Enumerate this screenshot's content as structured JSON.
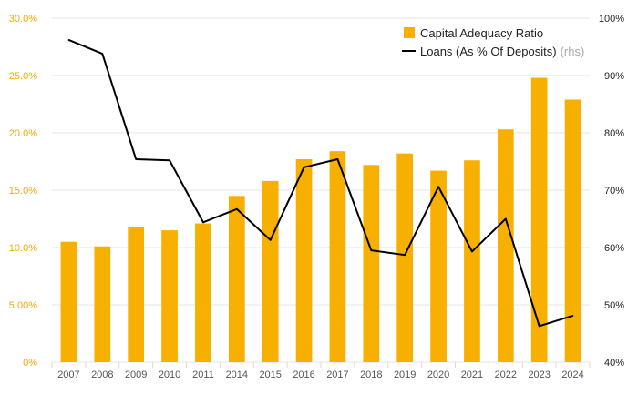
{
  "chart_data": {
    "type": "bar",
    "categories": [
      "2007",
      "2008",
      "2009",
      "2010",
      "2011",
      "2014",
      "2015",
      "2016",
      "2017",
      "2018",
      "2019",
      "2020",
      "2021",
      "2022",
      "2023",
      "2024"
    ],
    "series": [
      {
        "name": "Capital Adequacy Ratio",
        "type": "bar",
        "axis": "left",
        "color": "#f7b000",
        "values": [
          10.5,
          10.1,
          11.8,
          11.5,
          12.1,
          14.5,
          15.8,
          17.7,
          18.4,
          17.2,
          18.2,
          16.7,
          17.6,
          20.3,
          24.8,
          22.9
        ]
      },
      {
        "name": "Loans (As % Of Deposits)",
        "type": "line",
        "axis": "right",
        "color": "#000000",
        "values": [
          96.2,
          93.8,
          75.4,
          75.2,
          64.4,
          66.7,
          61.3,
          74.0,
          75.4,
          59.5,
          58.7,
          70.6,
          59.3,
          65.0,
          46.3,
          48.1
        ]
      }
    ],
    "yleft": {
      "lim": [
        0,
        30
      ],
      "ticks": [
        0,
        5,
        10,
        15,
        20,
        25,
        30
      ],
      "tick_labels": [
        "0%",
        "5.00%",
        "10.0%",
        "15.0%",
        "20.0%",
        "25.0%",
        "30.0%"
      ],
      "tick_color": "#f5a800"
    },
    "yright": {
      "lim": [
        40,
        100
      ],
      "ticks": [
        40,
        50,
        60,
        70,
        80,
        90,
        100
      ],
      "tick_labels": [
        "40%",
        "50%",
        "60%",
        "70%",
        "80%",
        "90%",
        "100%"
      ]
    },
    "legend": {
      "position": "top-right",
      "entries": [
        "Capital Adequacy Ratio",
        "Loans (As % Of Deposits)"
      ],
      "line_suffix": "(rhs)"
    },
    "grid": true,
    "title": "",
    "xlabel": "",
    "ylabel": ""
  }
}
